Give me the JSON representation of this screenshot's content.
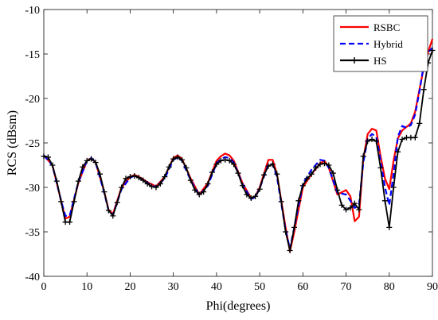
{
  "chart_data": {
    "type": "line",
    "title": "",
    "xlabel": "Phi(degrees)",
    "ylabel": "RCS (dBsm)",
    "xlim": [
      0,
      90
    ],
    "ylim": [
      -40,
      -10
    ],
    "xticks": [
      0,
      10,
      20,
      30,
      40,
      50,
      60,
      70,
      80,
      90
    ],
    "yticks": [
      -40,
      -35,
      -30,
      -25,
      -20,
      -15,
      -10
    ],
    "grid": false,
    "legend_position": "top-right",
    "series": [
      {
        "name": "RSBC",
        "color": "#ff0000",
        "style": "solid",
        "marker": "none",
        "x": [
          0,
          2,
          4,
          5,
          6,
          8,
          10,
          11,
          12,
          14,
          15,
          16,
          18,
          20,
          21,
          22,
          24,
          26,
          28,
          30,
          31,
          32,
          34,
          36,
          38,
          40,
          41,
          42,
          43,
          44,
          46,
          48,
          49,
          50,
          52,
          53,
          54,
          56,
          57,
          58,
          60,
          62,
          64,
          65,
          66,
          68,
          70,
          71,
          72,
          73,
          74,
          75,
          76,
          77,
          78,
          79,
          80,
          81,
          82,
          83,
          84,
          85,
          86,
          87,
          88,
          89,
          90
        ],
        "y": [
          -26.4,
          -27.5,
          -31.5,
          -33.5,
          -33.3,
          -29.5,
          -27.0,
          -26.7,
          -27.2,
          -30.5,
          -32.5,
          -33.0,
          -30.0,
          -28.8,
          -28.6,
          -28.8,
          -29.4,
          -29.9,
          -28.8,
          -26.7,
          -26.4,
          -26.8,
          -29.0,
          -30.8,
          -29.5,
          -27.0,
          -26.5,
          -26.2,
          -26.4,
          -27.0,
          -29.5,
          -31.2,
          -31.0,
          -30.0,
          -26.9,
          -26.9,
          -28.5,
          -34.5,
          -37.2,
          -35.0,
          -30.0,
          -28.5,
          -27.3,
          -27.0,
          -27.8,
          -30.8,
          -30.3,
          -31.0,
          -33.8,
          -33.3,
          -26.8,
          -24.0,
          -23.4,
          -23.6,
          -26.5,
          -29.0,
          -30.2,
          -27.0,
          -24.5,
          -23.6,
          -23.2,
          -22.8,
          -21.5,
          -19.0,
          -16.5,
          -14.8,
          -13.3
        ]
      },
      {
        "name": "Hybrid",
        "color": "#0000ff",
        "style": "dashed",
        "marker": "none",
        "x": [
          0,
          2,
          4,
          5,
          6,
          8,
          10,
          11,
          12,
          14,
          15,
          16,
          18,
          20,
          21,
          22,
          24,
          26,
          28,
          30,
          31,
          32,
          34,
          36,
          38,
          40,
          41,
          42,
          43,
          44,
          46,
          48,
          49,
          50,
          52,
          53,
          54,
          56,
          57,
          58,
          60,
          62,
          64,
          65,
          66,
          68,
          70,
          71,
          72,
          73,
          74,
          75,
          76,
          77,
          78,
          79,
          80,
          81,
          82,
          83,
          84,
          85,
          86,
          87,
          88,
          89,
          90
        ],
        "y": [
          -26.4,
          -27.5,
          -31.5,
          -33.2,
          -33.2,
          -29.4,
          -27.0,
          -26.7,
          -27.2,
          -30.6,
          -32.6,
          -33.1,
          -30.2,
          -28.9,
          -28.7,
          -28.9,
          -29.5,
          -30.0,
          -29.0,
          -26.9,
          -26.6,
          -27.0,
          -29.2,
          -30.9,
          -29.8,
          -27.3,
          -26.8,
          -26.6,
          -26.7,
          -27.2,
          -29.6,
          -31.3,
          -31.1,
          -30.1,
          -27.4,
          -27.4,
          -28.8,
          -34.8,
          -36.9,
          -34.5,
          -29.6,
          -28.0,
          -26.9,
          -27.0,
          -27.8,
          -30.6,
          -30.8,
          -31.5,
          -32.3,
          -32.0,
          -27.2,
          -24.5,
          -24.0,
          -24.3,
          -27.0,
          -30.0,
          -32.0,
          -28.5,
          -24.3,
          -23.1,
          -23.3,
          -23.0,
          -21.8,
          -19.2,
          -16.2,
          -14.8,
          -14.3
        ]
      },
      {
        "name": "HS",
        "color": "#000000",
        "style": "solid",
        "marker": "+",
        "x": [
          0,
          1,
          2,
          3,
          4,
          5,
          6,
          7,
          8,
          9,
          10,
          11,
          12,
          13,
          14,
          15,
          16,
          17,
          18,
          19,
          20,
          21,
          22,
          23,
          24,
          25,
          26,
          27,
          28,
          29,
          30,
          31,
          32,
          33,
          34,
          35,
          36,
          37,
          38,
          39,
          40,
          41,
          42,
          43,
          44,
          45,
          46,
          47,
          48,
          49,
          50,
          51,
          52,
          53,
          54,
          55,
          56,
          57,
          58,
          59,
          60,
          61,
          62,
          63,
          64,
          65,
          66,
          67,
          68,
          69,
          70,
          71,
          72,
          73,
          74,
          75,
          76,
          77,
          78,
          79,
          80,
          81,
          82,
          83,
          84,
          85,
          86,
          87,
          88,
          89,
          90
        ],
        "y": [
          -26.5,
          -26.6,
          -27.5,
          -29.3,
          -31.6,
          -33.9,
          -33.9,
          -31.6,
          -29.3,
          -27.7,
          -27.0,
          -26.8,
          -27.2,
          -28.5,
          -30.5,
          -32.6,
          -33.2,
          -31.7,
          -30.0,
          -29.0,
          -28.8,
          -28.7,
          -28.9,
          -29.2,
          -29.6,
          -29.9,
          -30.0,
          -29.6,
          -28.8,
          -27.7,
          -26.8,
          -26.6,
          -26.9,
          -27.8,
          -29.2,
          -30.3,
          -30.8,
          -30.5,
          -29.6,
          -28.3,
          -27.4,
          -27.0,
          -26.9,
          -27.0,
          -27.4,
          -28.4,
          -29.8,
          -30.8,
          -31.2,
          -31.0,
          -30.2,
          -28.6,
          -27.6,
          -27.4,
          -28.5,
          -31.6,
          -35.0,
          -37.1,
          -34.5,
          -31.5,
          -29.8,
          -29.0,
          -28.5,
          -27.8,
          -27.4,
          -27.3,
          -27.5,
          -28.4,
          -30.3,
          -32.0,
          -32.5,
          -32.3,
          -31.8,
          -32.5,
          -26.5,
          -24.8,
          -24.6,
          -24.8,
          -27.8,
          -31.5,
          -34.5,
          -30.0,
          -26.0,
          -24.6,
          -24.4,
          -24.4,
          -24.4,
          -22.8,
          -19.0,
          -16.0,
          -14.6
        ]
      }
    ]
  }
}
